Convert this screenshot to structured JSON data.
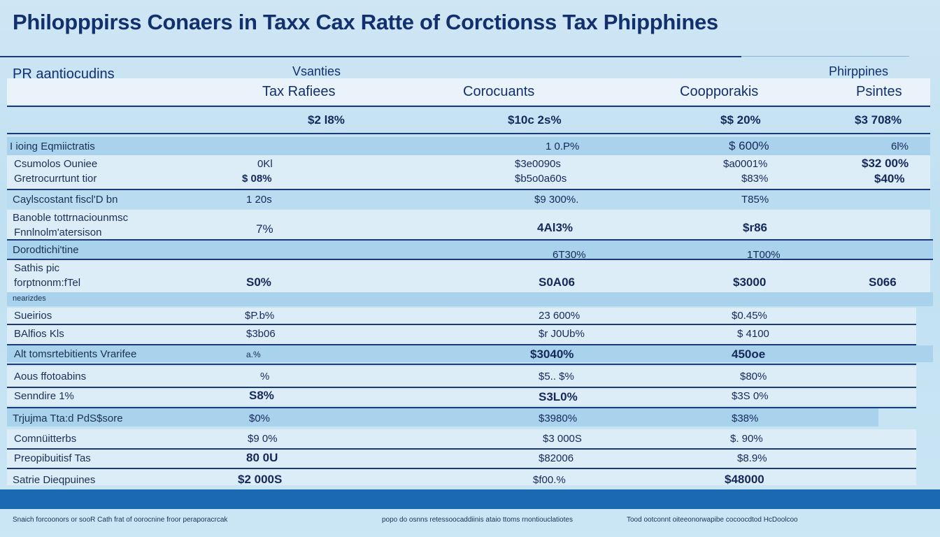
{
  "title": "Philopppirss Conaers in Taxx  Cax Ratte of Corctionss Tax Phipphines",
  "header": {
    "col0": "PR aantiocudins",
    "col1_top": "Vsanties",
    "col1": "Tax  Rafiees",
    "col2": "Corocuants",
    "col3": "Coopporakis",
    "col4_top": "Phirppines",
    "col4": "Psintes"
  },
  "summary_row": [
    "$2 l8%",
    "$10c 2s%",
    "$$ 20%",
    "$3 708%"
  ],
  "rows": [
    {
      "label": "I ioing Eqmiictratis",
      "c1": "",
      "c2": "1 0.P%",
      "c3": "$ 600%",
      "c4": "6l%"
    },
    {
      "label": "Csumolos Ouniee",
      "c1": "0Kl",
      "c2": "$3e0090s",
      "c3": "$a0001%",
      "c4": "$32 00%"
    },
    {
      "label": "Gretrocurrtunt tior",
      "c1": "$ 08%",
      "c2": "$b5o0a60s",
      "c3": "$83%",
      "c4": "$40%"
    },
    {
      "label": "Caylscostant fiscl'D bn",
      "c1": "1 20s",
      "c2": "$9 300%.",
      "c3": "T85%",
      "c4": ""
    },
    {
      "label": "Banoble tottrnaciounmsc",
      "c1": "",
      "c2": "",
      "c3": "",
      "c4": ""
    },
    {
      "label": "Fnnlnolm'atersison",
      "c1": "7%",
      "c2": "4Al3%",
      "c3": "$r86",
      "c4": ""
    },
    {
      "label": "Dorodtichi'tine",
      "c1": "",
      "c2": "6T30%",
      "c3": "1T00%",
      "c4": ""
    },
    {
      "label": "Sathis pic",
      "c1": "",
      "c2": "",
      "c3": "",
      "c4": ""
    },
    {
      "label": "forptnonm:fTel",
      "c1": "S0%",
      "c2": "S0A06",
      "c3": "$3000",
      "c4": "S066"
    },
    {
      "label": "nearizdes",
      "c1": "",
      "c2": "",
      "c3": "",
      "c4": ""
    },
    {
      "label": "Sueirios",
      "c1": "$P.b%",
      "c2": "23 600%",
      "c3": "$0.45%",
      "c4": ""
    },
    {
      "label": "BAlfios Kls",
      "c1": "$3b06",
      "c2": "$r J0Ub%",
      "c3": "$ 4100",
      "c4": ""
    },
    {
      "label": "Alt tomsrtebitients Vrarifee",
      "c1": "a.%",
      "c2": "$3040%",
      "c3": "450oe",
      "c4": ""
    },
    {
      "label": "Aous ffotoabins",
      "c1": "%",
      "c2": "$5.. $%",
      "c3": "$80%",
      "c4": ""
    },
    {
      "label": "Senndire 1%",
      "c1": "S8%",
      "c2": "S3L0%",
      "c3": "$3S 0%",
      "c4": ""
    },
    {
      "label": "Trjujma Tta:d PdS$sore",
      "c1": "$0%",
      "c2": "$3980%",
      "c3": "$38%",
      "c4": ""
    },
    {
      "label": "Comnüitterbs",
      "c1": "$9 0%",
      "c2": "$3 000S",
      "c3": "$. 90%",
      "c4": ""
    },
    {
      "label": "Preopibuitisf Tas",
      "c1": "80 0U",
      "c2": "$82006",
      "c3": "$8.9%",
      "c4": ""
    },
    {
      "label": "Satrie Dieqpuines",
      "c1": "$2 000S",
      "c2": "$f00.%",
      "c3": "$48000",
      "c4": ""
    }
  ],
  "footer": {
    "left": "Snaich forcoonors or sooR Cath  frat  of oorocnine froor peraporacrcak",
    "center": "popo do osnns retessoocaddiinis  ataio ttoms  rnontiouclatiotes",
    "right": "Tood  ootconnt oiteeonorwapibe  cocoocdtod  HcDoolcoo"
  }
}
